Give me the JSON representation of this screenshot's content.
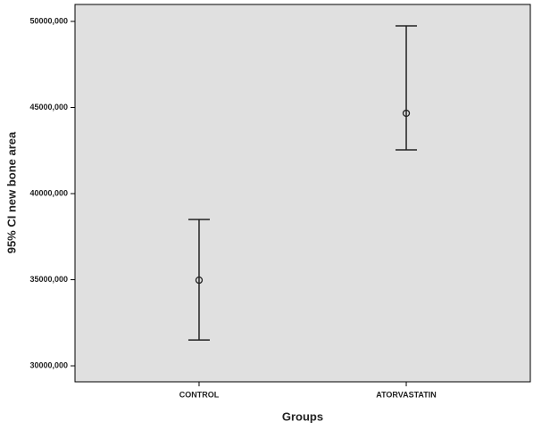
{
  "chart_data": {
    "type": "errorbar",
    "x_label": "Groups",
    "y_label": "95% CI new bone area",
    "categories": [
      "CONTROL",
      "ATORVASTATIN"
    ],
    "values": [
      34975,
      44665
    ],
    "ci_low": [
      31500,
      42540
    ],
    "ci_high": [
      38500,
      49740
    ],
    "color": "#222222",
    "background": "#e0e0e0",
    "ylim": [
      29070,
      50985
    ],
    "yticks": [
      {
        "value": 30000,
        "label": "30000,000"
      },
      {
        "value": 35000,
        "label": "35000,000"
      },
      {
        "value": 40000,
        "label": "40000,000"
      },
      {
        "value": 45000,
        "label": "45000,000"
      },
      {
        "value": 50000,
        "label": "50000,000"
      }
    ]
  }
}
